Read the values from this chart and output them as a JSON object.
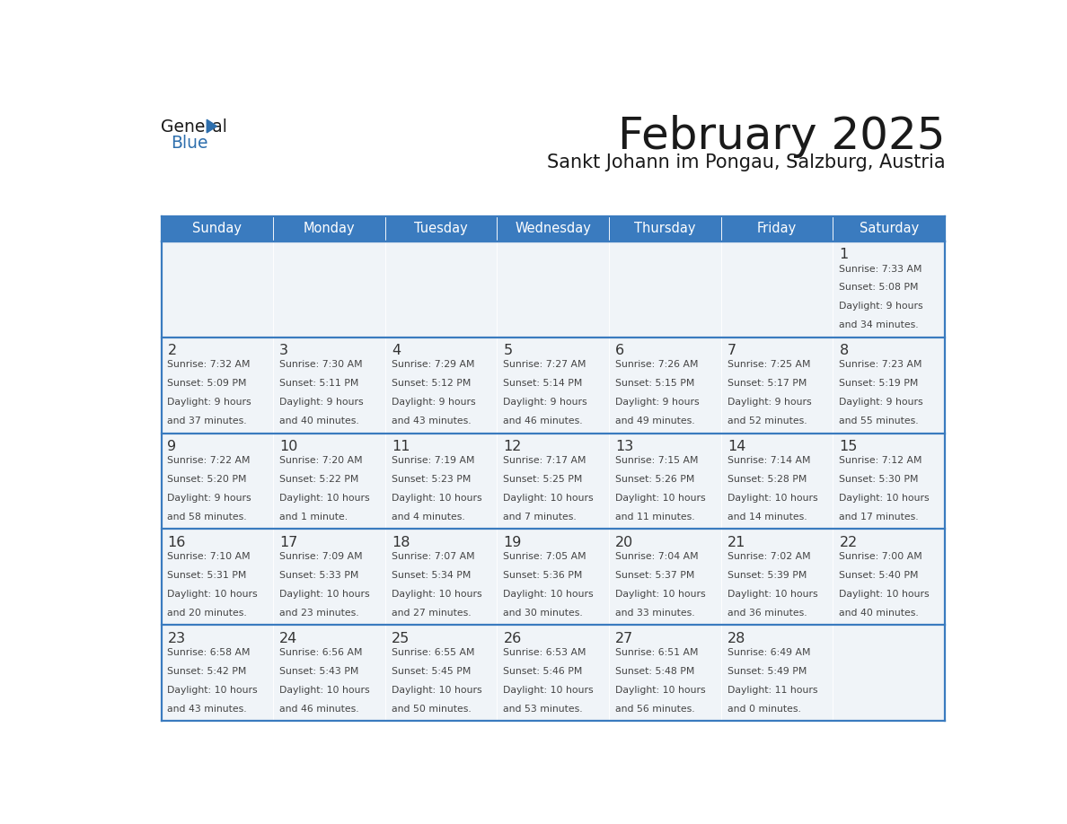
{
  "title": "February 2025",
  "subtitle": "Sankt Johann im Pongau, Salzburg, Austria",
  "days_of_week": [
    "Sunday",
    "Monday",
    "Tuesday",
    "Wednesday",
    "Thursday",
    "Friday",
    "Saturday"
  ],
  "header_bg": "#3a7bbf",
  "header_text": "#ffffff",
  "cell_bg": "#f0f4f8",
  "cell_bg_empty_first": "#f0f4f8",
  "border_color": "#3a7bbf",
  "day_number_color": "#333333",
  "info_text_color": "#444444",
  "title_color": "#1a1a1a",
  "subtitle_color": "#1a1a1a",
  "logo_general_color": "#1a1a1a",
  "logo_blue_color": "#2e6fad",
  "weeks": [
    [
      {
        "day": null,
        "sunrise": null,
        "sunset": null,
        "daylight": null
      },
      {
        "day": null,
        "sunrise": null,
        "sunset": null,
        "daylight": null
      },
      {
        "day": null,
        "sunrise": null,
        "sunset": null,
        "daylight": null
      },
      {
        "day": null,
        "sunrise": null,
        "sunset": null,
        "daylight": null
      },
      {
        "day": null,
        "sunrise": null,
        "sunset": null,
        "daylight": null
      },
      {
        "day": null,
        "sunrise": null,
        "sunset": null,
        "daylight": null
      },
      {
        "day": 1,
        "sunrise": "7:33 AM",
        "sunset": "5:08 PM",
        "daylight": "9 hours\nand 34 minutes."
      }
    ],
    [
      {
        "day": 2,
        "sunrise": "7:32 AM",
        "sunset": "5:09 PM",
        "daylight": "9 hours\nand 37 minutes."
      },
      {
        "day": 3,
        "sunrise": "7:30 AM",
        "sunset": "5:11 PM",
        "daylight": "9 hours\nand 40 minutes."
      },
      {
        "day": 4,
        "sunrise": "7:29 AM",
        "sunset": "5:12 PM",
        "daylight": "9 hours\nand 43 minutes."
      },
      {
        "day": 5,
        "sunrise": "7:27 AM",
        "sunset": "5:14 PM",
        "daylight": "9 hours\nand 46 minutes."
      },
      {
        "day": 6,
        "sunrise": "7:26 AM",
        "sunset": "5:15 PM",
        "daylight": "9 hours\nand 49 minutes."
      },
      {
        "day": 7,
        "sunrise": "7:25 AM",
        "sunset": "5:17 PM",
        "daylight": "9 hours\nand 52 minutes."
      },
      {
        "day": 8,
        "sunrise": "7:23 AM",
        "sunset": "5:19 PM",
        "daylight": "9 hours\nand 55 minutes."
      }
    ],
    [
      {
        "day": 9,
        "sunrise": "7:22 AM",
        "sunset": "5:20 PM",
        "daylight": "9 hours\nand 58 minutes."
      },
      {
        "day": 10,
        "sunrise": "7:20 AM",
        "sunset": "5:22 PM",
        "daylight": "10 hours\nand 1 minute."
      },
      {
        "day": 11,
        "sunrise": "7:19 AM",
        "sunset": "5:23 PM",
        "daylight": "10 hours\nand 4 minutes."
      },
      {
        "day": 12,
        "sunrise": "7:17 AM",
        "sunset": "5:25 PM",
        "daylight": "10 hours\nand 7 minutes."
      },
      {
        "day": 13,
        "sunrise": "7:15 AM",
        "sunset": "5:26 PM",
        "daylight": "10 hours\nand 11 minutes."
      },
      {
        "day": 14,
        "sunrise": "7:14 AM",
        "sunset": "5:28 PM",
        "daylight": "10 hours\nand 14 minutes."
      },
      {
        "day": 15,
        "sunrise": "7:12 AM",
        "sunset": "5:30 PM",
        "daylight": "10 hours\nand 17 minutes."
      }
    ],
    [
      {
        "day": 16,
        "sunrise": "7:10 AM",
        "sunset": "5:31 PM",
        "daylight": "10 hours\nand 20 minutes."
      },
      {
        "day": 17,
        "sunrise": "7:09 AM",
        "sunset": "5:33 PM",
        "daylight": "10 hours\nand 23 minutes."
      },
      {
        "day": 18,
        "sunrise": "7:07 AM",
        "sunset": "5:34 PM",
        "daylight": "10 hours\nand 27 minutes."
      },
      {
        "day": 19,
        "sunrise": "7:05 AM",
        "sunset": "5:36 PM",
        "daylight": "10 hours\nand 30 minutes."
      },
      {
        "day": 20,
        "sunrise": "7:04 AM",
        "sunset": "5:37 PM",
        "daylight": "10 hours\nand 33 minutes."
      },
      {
        "day": 21,
        "sunrise": "7:02 AM",
        "sunset": "5:39 PM",
        "daylight": "10 hours\nand 36 minutes."
      },
      {
        "day": 22,
        "sunrise": "7:00 AM",
        "sunset": "5:40 PM",
        "daylight": "10 hours\nand 40 minutes."
      }
    ],
    [
      {
        "day": 23,
        "sunrise": "6:58 AM",
        "sunset": "5:42 PM",
        "daylight": "10 hours\nand 43 minutes."
      },
      {
        "day": 24,
        "sunrise": "6:56 AM",
        "sunset": "5:43 PM",
        "daylight": "10 hours\nand 46 minutes."
      },
      {
        "day": 25,
        "sunrise": "6:55 AM",
        "sunset": "5:45 PM",
        "daylight": "10 hours\nand 50 minutes."
      },
      {
        "day": 26,
        "sunrise": "6:53 AM",
        "sunset": "5:46 PM",
        "daylight": "10 hours\nand 53 minutes."
      },
      {
        "day": 27,
        "sunrise": "6:51 AM",
        "sunset": "5:48 PM",
        "daylight": "10 hours\nand 56 minutes."
      },
      {
        "day": 28,
        "sunrise": "6:49 AM",
        "sunset": "5:49 PM",
        "daylight": "11 hours\nand 0 minutes."
      },
      {
        "day": null,
        "sunrise": null,
        "sunset": null,
        "daylight": null
      }
    ]
  ]
}
